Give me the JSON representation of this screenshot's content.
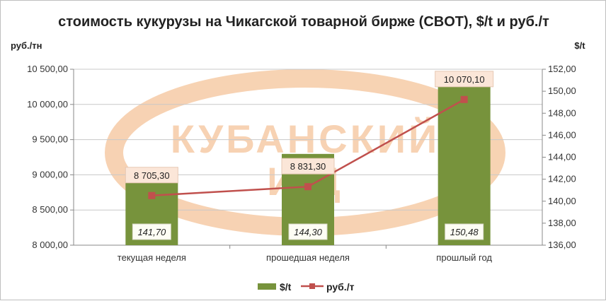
{
  "chart_data": {
    "type": "bar",
    "title": "стоимость кукурузы на Чикагской товарной бирже (CBOT), $/t и руб./т",
    "categories": [
      "текущая неделя",
      "прошедшая неделя",
      "прошлый год"
    ],
    "left_axis": {
      "unit_label": "руб./тн",
      "ylim": [
        8000,
        10500
      ],
      "ticks": [
        "8 000,00",
        "8 500,00",
        "9 000,00",
        "9 500,00",
        "10 000,00",
        "10 500,00"
      ]
    },
    "right_axis": {
      "unit_label": "$/t",
      "ylim": [
        136,
        152
      ],
      "ticks": [
        "136,00",
        "138,00",
        "140,00",
        "142,00",
        "144,00",
        "146,00",
        "148,00",
        "150,00",
        "152,00"
      ]
    },
    "series": [
      {
        "name": "$/t",
        "kind": "bar",
        "axis": "right",
        "color": "#77933c",
        "values": [
          141.7,
          144.3,
          150.48
        ],
        "labels": [
          "141,70",
          "144,30",
          "150,48"
        ]
      },
      {
        "name": "руб./т",
        "kind": "line",
        "axis": "left",
        "color": "#c0504d",
        "values": [
          8705.3,
          8831.3,
          10070.1
        ],
        "labels": [
          "8 705,30",
          "8 831,30",
          "10 070,10"
        ]
      }
    ],
    "grid": true,
    "legend_position": "bottom"
  },
  "watermark": {
    "line1": "КУБАНСКИЙ",
    "line2": "И  Д",
    "color": "#f6cba6"
  }
}
